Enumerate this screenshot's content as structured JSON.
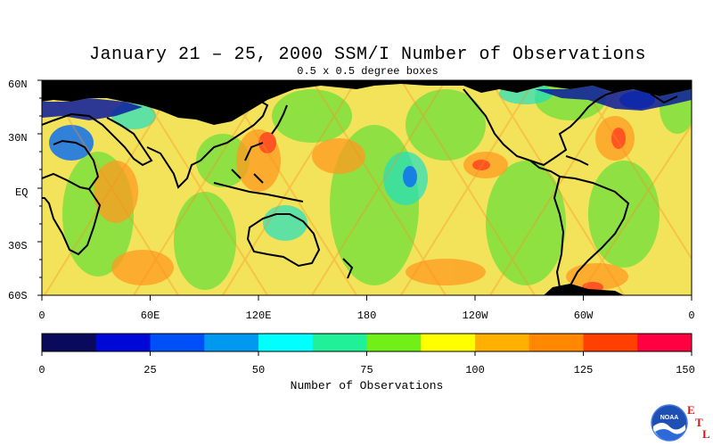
{
  "title": "January 21 – 25, 2000 SSM/I Number of Observations",
  "subtitle": "0.5 x 0.5 degree boxes",
  "map": {
    "lat_labels": [
      "60N",
      "30N",
      "EQ",
      "30S",
      "60S"
    ],
    "lon_labels": [
      "0",
      "60E",
      "120E",
      "180",
      "120W",
      "60W",
      "0"
    ],
    "land_color": "#000000",
    "background_color": "#f5e85a"
  },
  "colorbar": {
    "title": "Number of Observations",
    "ticks": [
      "0",
      "25",
      "50",
      "75",
      "100",
      "125",
      "150"
    ],
    "colors": [
      "#0a0a5c",
      "#0008d8",
      "#0050f8",
      "#0098f0",
      "#00ffff",
      "#20f098",
      "#70f018",
      "#ffff00",
      "#ffb000",
      "#ff8800",
      "#ff4000",
      "#ff0040"
    ]
  },
  "logo": {
    "agency_text": "NOAA",
    "lab_letters": [
      "E",
      "T",
      "L"
    ]
  }
}
